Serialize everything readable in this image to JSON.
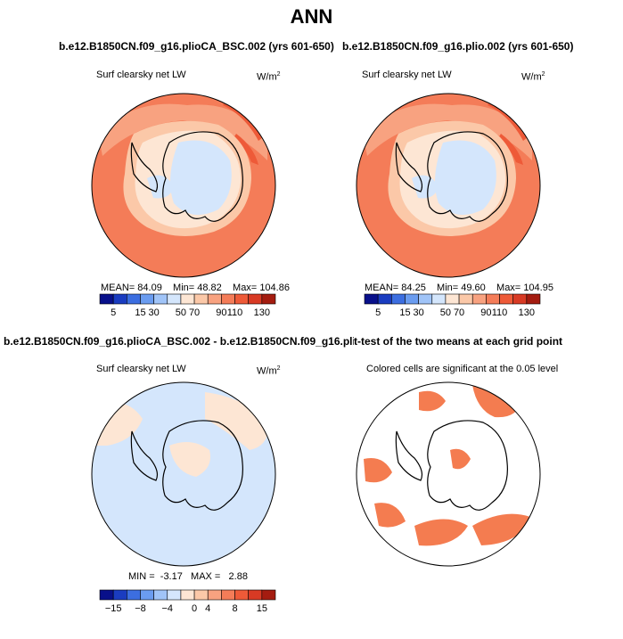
{
  "main_title": "ANN",
  "panels": [
    {
      "title": "b.e12.B1850CN.f09_g16.plioCA_BSC.002 (yrs 601-650)",
      "variable": "Surf clearsky net LW",
      "units": "W/m",
      "units_exp": "2",
      "stats": {
        "mean_label": "MEAN=",
        "mean": "84.09",
        "min_label": "Min=",
        "min": "48.82",
        "max_label": "Max=",
        "max": "104.86"
      },
      "colorbar_ticks": [
        "5",
        "15",
        "30",
        "50",
        "70",
        "90",
        "110",
        "130"
      ]
    },
    {
      "title": "b.e12.B1850CN.f09_g16.plio.002 (yrs 601-650)",
      "variable": "Surf clearsky net LW",
      "units": "W/m",
      "units_exp": "2",
      "stats": {
        "mean_label": "MEAN=",
        "mean": "84.25",
        "min_label": "Min=",
        "min": "49.60",
        "max_label": "Max=",
        "max": "104.95"
      },
      "colorbar_ticks": [
        "5",
        "15",
        "30",
        "50",
        "70",
        "90",
        "110",
        "130"
      ]
    },
    {
      "title": "b.e12.B1850CN.f09_g16.plioCA_BSC.002 - b.e12.B1850CN.f09_g16.plio.002",
      "variable": "Surf clearsky net LW",
      "units": "W/m",
      "units_exp": "2",
      "stats": {
        "min_label": "MIN =",
        "min": "-3.17",
        "max_label": "MAX =",
        "max": "2.88"
      },
      "colorbar_ticks": [
        "−15",
        "−8",
        "−4",
        "0",
        "4",
        "8",
        "15"
      ]
    },
    {
      "title": "t-test of the two means at each grid point",
      "variable": "Colored cells are significant at the 0.05 level"
    }
  ],
  "colors": {
    "abs_scale": [
      "#08108a",
      "#1a3cc0",
      "#3c6ee0",
      "#6a9cf0",
      "#a0c4f8",
      "#d4e6fc",
      "#fde6d4",
      "#fbc8a8",
      "#f8a280",
      "#f47c58",
      "#ee5a38",
      "#d83a24",
      "#a41c10"
    ],
    "diff_scale": [
      "#08108a",
      "#1a3cc0",
      "#3c6ee0",
      "#6a9cf0",
      "#a0c4f8",
      "#d4e6fc",
      "#fde6d4",
      "#fbc8a8",
      "#f8a280",
      "#f47c58",
      "#ee5a38",
      "#d83a24",
      "#a41c10"
    ],
    "ocean_field": "#f37e58",
    "signif": "#f47c50",
    "diff_bg": "#d4e6fc",
    "diff_pos": "#fde6d4"
  }
}
